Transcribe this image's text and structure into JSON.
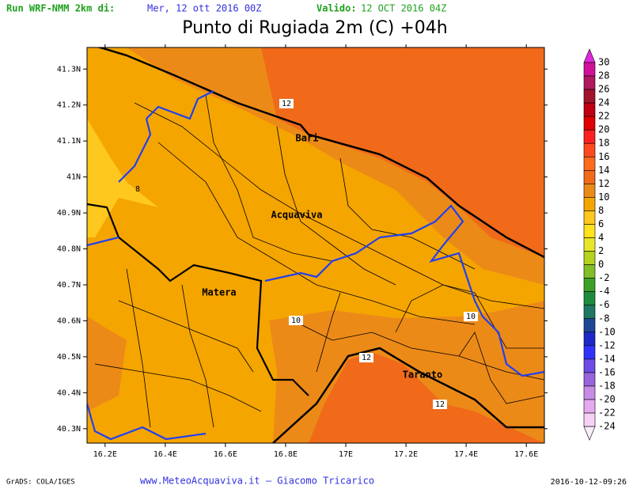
{
  "header": {
    "run_label": "Run WRF-NMM 2km di:",
    "run_date": "Mer, 12 ott 2016 00Z",
    "valid_label": "Valido:",
    "valid_date": "12 OCT 2016 04Z",
    "title": "Punto di Rugiada 2m (C) +04h"
  },
  "map": {
    "lon_range": [
      16.14,
      17.66
    ],
    "lat_range": [
      40.26,
      41.36
    ],
    "lon_ticks": [
      {
        "value": 16.2,
        "label": "16.2E"
      },
      {
        "value": 16.4,
        "label": "16.4E"
      },
      {
        "value": 16.6,
        "label": "16.6E"
      },
      {
        "value": 16.8,
        "label": "16.8E"
      },
      {
        "value": 17,
        "label": "17E"
      },
      {
        "value": 17.2,
        "label": "17.2E"
      },
      {
        "value": 17.4,
        "label": "17.4E"
      },
      {
        "value": 17.6,
        "label": "17.6E"
      }
    ],
    "lat_ticks": [
      {
        "value": 41.3,
        "label": "41.3N"
      },
      {
        "value": 41.2,
        "label": "41.2N"
      },
      {
        "value": 41.1,
        "label": "41.1N"
      },
      {
        "value": 41,
        "label": "41N"
      },
      {
        "value": 40.9,
        "label": "40.9N"
      },
      {
        "value": 40.8,
        "label": "40.8N"
      },
      {
        "value": 40.7,
        "label": "40.7N"
      },
      {
        "value": 40.6,
        "label": "40.6N"
      },
      {
        "value": 40.5,
        "label": "40.5N"
      },
      {
        "value": 40.4,
        "label": "40.4N"
      },
      {
        "value": 40.3,
        "label": "40.3N"
      }
    ],
    "places": [
      "Bari",
      "Acquaviva",
      "Matera",
      "Taranto"
    ],
    "contour_labels": [
      "12",
      "8",
      "10",
      "10",
      "12",
      "12"
    ]
  },
  "colorbar": {
    "levels": [
      30,
      28,
      26,
      24,
      22,
      20,
      18,
      16,
      14,
      12,
      10,
      8,
      6,
      4,
      2,
      0,
      -2,
      -4,
      -6,
      -8,
      -10,
      -12,
      -14,
      -16,
      -18,
      -20,
      -22,
      -24
    ],
    "colors": [
      "#e028e0",
      "#d0109a",
      "#b01860",
      "#a0142c",
      "#c00010",
      "#e00000",
      "#ff2020",
      "#ff4a1e",
      "#ff6a1e",
      "#f06a1a",
      "#ec8a18",
      "#f5a500",
      "#ffc81e",
      "#ffe11e",
      "#e6e628",
      "#b4d21e",
      "#82be28",
      "#3ca028",
      "#1e8c3c",
      "#1e7864",
      "#1e4696",
      "#1e28c8",
      "#3232ff",
      "#6e4be6",
      "#9664dc",
      "#c88ce6",
      "#e6aaf0",
      "#f5d2f5",
      "#fbeefb"
    ]
  },
  "footer": {
    "left": "GrADS: COLA/IGES",
    "center": "www.MeteoAcquaviva.it – Giacomo Tricarico",
    "right": "2016-10-12-09:26"
  }
}
